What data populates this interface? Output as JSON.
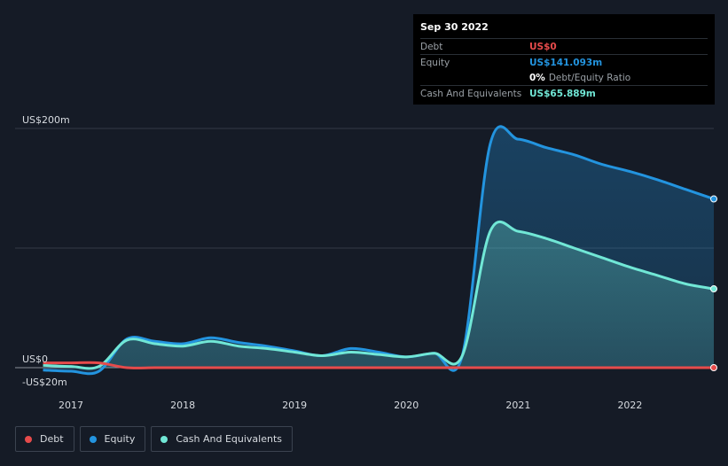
{
  "tooltip": {
    "date": "Sep 30 2022",
    "debt_label": "Debt",
    "debt_value": "US$0",
    "equity_label": "Equity",
    "equity_value": "US$141.093m",
    "ratio_value": "0%",
    "ratio_label": "Debt/Equity Ratio",
    "cash_label": "Cash And Equivalents",
    "cash_value": "US$65.889m"
  },
  "legend": {
    "debt": "Debt",
    "equity": "Equity",
    "cash": "Cash And Equivalents"
  },
  "colors": {
    "background": "#151b26",
    "debt": "#e64b4b",
    "equity": "#2394df",
    "cash": "#71e7d6",
    "grid": "#323a46",
    "axis_text": "#d7dbe0"
  },
  "chart_data": {
    "type": "area",
    "title": "",
    "xlabel": "",
    "ylabel": "",
    "ylim": [
      -20,
      200
    ],
    "y_ticks": [
      {
        "value": 200,
        "label": "US$200m"
      },
      {
        "value": 100,
        "label": ""
      },
      {
        "value": 0,
        "label": "US$0"
      },
      {
        "value": -20,
        "label": "-US$20m"
      }
    ],
    "xlim": [
      2016.5,
      2022.75
    ],
    "x_ticks": [
      {
        "value": 2017.0,
        "label": "2017"
      },
      {
        "value": 2018.0,
        "label": "2018"
      },
      {
        "value": 2019.0,
        "label": "2019"
      },
      {
        "value": 2020.0,
        "label": "2020"
      },
      {
        "value": 2021.0,
        "label": "2021"
      },
      {
        "value": 2022.0,
        "label": "2022"
      }
    ],
    "series": [
      {
        "name": "Equity",
        "x": [
          2016.75,
          2017.0,
          2017.25,
          2017.5,
          2017.75,
          2018.0,
          2018.25,
          2018.5,
          2018.75,
          2019.0,
          2019.25,
          2019.5,
          2019.75,
          2020.0,
          2020.25,
          2020.5,
          2020.75,
          2021.0,
          2021.25,
          2021.5,
          2021.75,
          2022.0,
          2022.25,
          2022.5,
          2022.75
        ],
        "values": [
          -2,
          -3,
          -3,
          24,
          22,
          20,
          25,
          21,
          18,
          14,
          10,
          16,
          13,
          9,
          12,
          10,
          187,
          191,
          184,
          178,
          170,
          164,
          157,
          149,
          141.093
        ]
      },
      {
        "name": "Cash And Equivalents",
        "x": [
          2016.75,
          2017.0,
          2017.25,
          2017.5,
          2017.75,
          2018.0,
          2018.25,
          2018.5,
          2018.75,
          2019.0,
          2019.25,
          2019.5,
          2019.75,
          2020.0,
          2020.25,
          2020.5,
          2020.75,
          2021.0,
          2021.25,
          2021.5,
          2021.75,
          2022.0,
          2022.25,
          2022.5,
          2022.75
        ],
        "values": [
          2,
          1,
          1,
          23,
          20,
          18,
          22,
          18,
          16,
          13,
          10,
          13,
          11,
          9,
          12,
          10,
          114,
          114,
          108,
          100,
          92,
          84,
          77,
          70,
          65.889
        ]
      },
      {
        "name": "Debt",
        "x": [
          2016.75,
          2017.0,
          2017.25,
          2017.5,
          2017.75,
          2018.0,
          2018.25,
          2018.5,
          2018.75,
          2019.0,
          2019.25,
          2019.5,
          2019.75,
          2020.0,
          2020.25,
          2020.5,
          2020.75,
          2021.0,
          2021.25,
          2021.5,
          2021.75,
          2022.0,
          2022.25,
          2022.5,
          2022.75
        ],
        "values": [
          4,
          4,
          4,
          0,
          0,
          0,
          0,
          0,
          0,
          0,
          0,
          0,
          0,
          0,
          0,
          0,
          0,
          0,
          0,
          0,
          0,
          0,
          0,
          0,
          0
        ]
      }
    ],
    "legend": [
      "Debt",
      "Equity",
      "Cash And Equivalents"
    ],
    "legend_position": "bottom-left"
  }
}
